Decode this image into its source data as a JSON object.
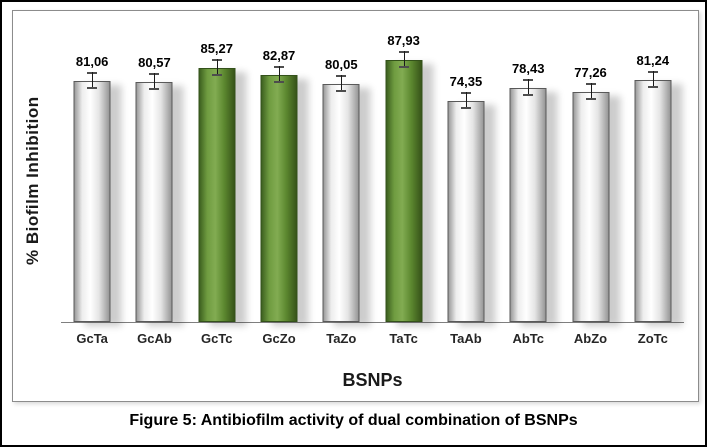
{
  "caption": "Figure 5: Antibiofilm activity of dual combination of BSNPs",
  "chart_data": {
    "type": "bar",
    "title": "",
    "xlabel": "BSNPs",
    "ylabel": "% Biofilm Inhibition",
    "ylim": [
      0,
      95
    ],
    "grid": false,
    "legend": false,
    "error_bars": true,
    "categories": [
      "GcTa",
      "GcAb",
      "GcTc",
      "GcZo",
      "TaZo",
      "TaTc",
      "TaAb",
      "AbTc",
      "AbZo",
      "ZoTc"
    ],
    "values": [
      81.06,
      80.57,
      85.27,
      82.87,
      80.05,
      87.93,
      74.35,
      78.43,
      77.26,
      81.24
    ],
    "value_labels": [
      "81,06",
      "80,57",
      "85,27",
      "82,87",
      "80,05",
      "87,93",
      "74,35",
      "78,43",
      "77,26",
      "81,24"
    ],
    "highlighted_categories": [
      "GcTc",
      "GcZo",
      "TaTc"
    ],
    "bar_color_default": "#ededed",
    "bar_color_highlight": "#5d8930"
  }
}
